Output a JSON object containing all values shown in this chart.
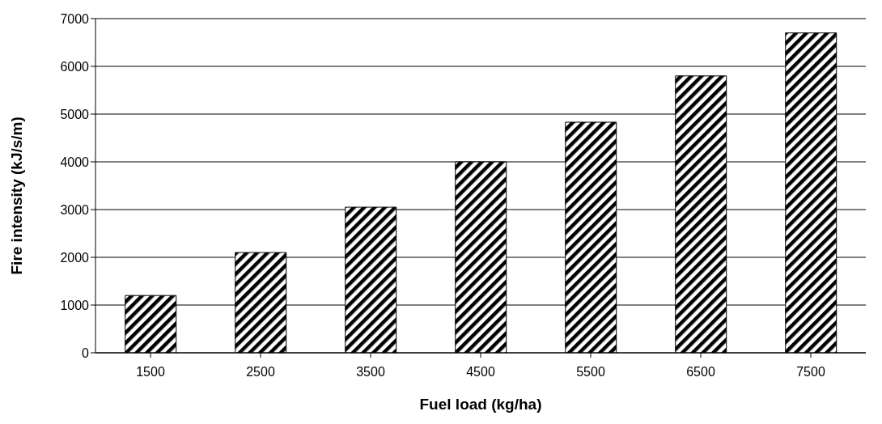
{
  "chart_data": {
    "type": "bar",
    "xlabel": "Fuel load (kg/ha)",
    "ylabel": "Fire intensity (kJ/s/m)",
    "categories": [
      "1500",
      "2500",
      "3500",
      "4500",
      "5500",
      "6500",
      "7500"
    ],
    "values": [
      1200,
      2100,
      3050,
      4000,
      4830,
      5800,
      6700
    ],
    "color": "#000000",
    "ylim": [
      0,
      7000
    ],
    "yticks": [
      0,
      1000,
      2000,
      3000,
      4000,
      5000,
      6000,
      7000
    ],
    "grid": "y"
  }
}
